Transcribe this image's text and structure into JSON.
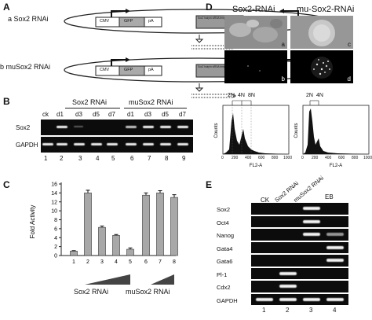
{
  "panelA": {
    "letter": "A",
    "rows": [
      {
        "label": "a Sox2 RNAi",
        "cmv": "CMV",
        "gfp": "GFP",
        "pa": "pA",
        "cassette": "Sox2 hairpin siRNA template",
        "u6": "U6"
      },
      {
        "label": "b muSox2 RNAi",
        "cmv": "CMV",
        "gfp": "GFP",
        "pa": "pA",
        "cassette": "Sox2 hairpin siRNA template",
        "u6": "U6"
      }
    ]
  },
  "panelB": {
    "letter": "B",
    "group1": "Sox2 RNAi",
    "group2": "muSox2 RNAi",
    "lanes": [
      "ck",
      "d1",
      "d3",
      "d5",
      "d7",
      "d1",
      "d3",
      "d5",
      "d7"
    ],
    "rows": [
      "Sox2",
      "GAPDH"
    ],
    "numbers": [
      "1",
      "2",
      "3",
      "4",
      "5",
      "6",
      "7",
      "8",
      "9"
    ]
  },
  "panelC": {
    "letter": "C",
    "ylabel": "Fold Activity",
    "yticks": [
      "0",
      "2",
      "4",
      "6",
      "8",
      "10",
      "12",
      "14",
      "16"
    ],
    "lanes": [
      "1",
      "2",
      "3",
      "4",
      "5",
      "6",
      "7",
      "8"
    ],
    "group1": "Sox2 RNAi",
    "group2": "muSox2 RNAi"
  },
  "chart_data": {
    "type": "bar",
    "categories": [
      "1",
      "2",
      "3",
      "4",
      "5",
      "6",
      "7",
      "8"
    ],
    "values": [
      1,
      14,
      6.3,
      4.5,
      1.4,
      13.5,
      14,
      13
    ],
    "errors": [
      0.1,
      0.6,
      0.3,
      0.2,
      0.3,
      0.5,
      0.5,
      0.6
    ],
    "ylabel": "Fold Activity",
    "ylim": [
      0,
      16
    ],
    "grid": false
  },
  "panelD": {
    "letter": "D",
    "title_left": "Sox2-RNAi",
    "title_right": "mu-Sox2-RNAi",
    "sub": [
      "a",
      "b",
      "c",
      "d"
    ],
    "flow_left": {
      "peaks": [
        "2N",
        "4N",
        "8N"
      ],
      "xlabel": "FL2-A",
      "ylabel": "Counts",
      "xticks": [
        "0",
        "200",
        "400",
        "600",
        "800",
        "1000"
      ]
    },
    "flow_right": {
      "peaks": [
        "2N",
        "4N"
      ],
      "xlabel": "FL2-A",
      "ylabel": "Counts",
      "xticks": [
        "0",
        "200",
        "400",
        "600",
        "800",
        "1000"
      ]
    }
  },
  "panelE": {
    "letter": "E",
    "columns": [
      "CK",
      "Sox2 RNAi",
      "muSox2 RNAi",
      "EB"
    ],
    "genes": [
      "Sox2",
      "Oct4",
      "Nanog",
      "Gata4",
      "Gata6",
      "Pl-1",
      "Cdx2",
      "GAPDH"
    ],
    "numbers": [
      "1",
      "2",
      "3",
      "4"
    ]
  }
}
